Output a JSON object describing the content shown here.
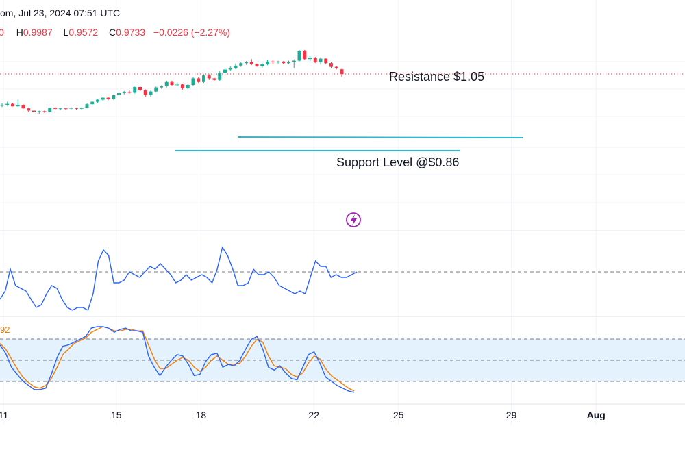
{
  "header": {
    "title_fragment": "om, Jul 23, 2024 07:51 UTC",
    "ohlc": {
      "o_fragment": "0",
      "h_label": "H",
      "h_value": "0.9987",
      "l_label": "L",
      "l_value": "0.9572",
      "c_label": "C",
      "c_value": "0.9733",
      "change": "−0.0226 (−2.27%)"
    }
  },
  "annotations": {
    "resistance": "Resistance $1.05",
    "support": "Support Level @$0.86"
  },
  "stoch_label_fragment": "92",
  "colors": {
    "up": "#22ab94",
    "down": "#f23645",
    "level_line": "#26bcd4",
    "rsi": "#2962ff",
    "stoch_k": "#2962ff",
    "stoch_d": "#f57c00",
    "band_fill": "#e3f2fd",
    "grid": "#f0f3fa",
    "header_text": "#f23645",
    "icon": "#9c27b0"
  },
  "icons": {
    "flash": "lightning-bolt-icon"
  },
  "chart_data": {
    "type": "candlestick",
    "x_ticks": [
      {
        "label": "11",
        "day": 11
      },
      {
        "label": "15",
        "day": 15
      },
      {
        "label": "18",
        "day": 18
      },
      {
        "label": "22",
        "day": 22
      },
      {
        "label": "25",
        "day": 25
      },
      {
        "label": "29",
        "day": 29
      },
      {
        "label": "Aug",
        "day": 32
      }
    ],
    "candles": [
      [
        0.82,
        0.83,
        0.812,
        0.822
      ],
      [
        0.822,
        0.838,
        0.818,
        0.828
      ],
      [
        0.828,
        0.832,
        0.815,
        0.816
      ],
      [
        0.816,
        0.848,
        0.812,
        0.823
      ],
      [
        0.823,
        0.826,
        0.804,
        0.806
      ],
      [
        0.806,
        0.808,
        0.79,
        0.795
      ],
      [
        0.795,
        0.798,
        0.788,
        0.79
      ],
      [
        0.79,
        0.795,
        0.78,
        0.792
      ],
      [
        0.792,
        0.796,
        0.784,
        0.79
      ],
      [
        0.79,
        0.81,
        0.786,
        0.808
      ],
      [
        0.808,
        0.812,
        0.8,
        0.804
      ],
      [
        0.804,
        0.81,
        0.798,
        0.806
      ],
      [
        0.806,
        0.808,
        0.8,
        0.805
      ],
      [
        0.805,
        0.812,
        0.8,
        0.808
      ],
      [
        0.808,
        0.81,
        0.8,
        0.804
      ],
      [
        0.804,
        0.812,
        0.8,
        0.81
      ],
      [
        0.81,
        0.83,
        0.806,
        0.826
      ],
      [
        0.826,
        0.84,
        0.82,
        0.838
      ],
      [
        0.838,
        0.852,
        0.832,
        0.848
      ],
      [
        0.848,
        0.862,
        0.842,
        0.858
      ],
      [
        0.858,
        0.86,
        0.846,
        0.852
      ],
      [
        0.852,
        0.872,
        0.848,
        0.87
      ],
      [
        0.87,
        0.884,
        0.864,
        0.88
      ],
      [
        0.88,
        0.89,
        0.874,
        0.886
      ],
      [
        0.886,
        0.892,
        0.878,
        0.882
      ],
      [
        0.882,
        0.912,
        0.878,
        0.91
      ],
      [
        0.91,
        0.912,
        0.89,
        0.894
      ],
      [
        0.894,
        0.898,
        0.862,
        0.872
      ],
      [
        0.872,
        0.892,
        0.862,
        0.888
      ],
      [
        0.888,
        0.912,
        0.884,
        0.908
      ],
      [
        0.908,
        0.918,
        0.902,
        0.914
      ],
      [
        0.914,
        0.94,
        0.908,
        0.934
      ],
      [
        0.934,
        0.94,
        0.914,
        0.92
      ],
      [
        0.92,
        0.932,
        0.914,
        0.922
      ],
      [
        0.922,
        0.926,
        0.898,
        0.904
      ],
      [
        0.904,
        0.924,
        0.9,
        0.92
      ],
      [
        0.92,
        0.958,
        0.914,
        0.952
      ],
      [
        0.952,
        0.96,
        0.93,
        0.934
      ],
      [
        0.934,
        0.972,
        0.93,
        0.966
      ],
      [
        0.966,
        0.972,
        0.944,
        0.952
      ],
      [
        0.952,
        0.954,
        0.94,
        0.944
      ],
      [
        0.944,
        0.986,
        0.94,
        0.98
      ],
      [
        0.98,
        1.002,
        0.974,
        0.995
      ],
      [
        0.995,
        1.01,
        0.988,
        1.0
      ],
      [
        1.0,
        1.024,
        0.996,
        1.014
      ],
      [
        1.014,
        1.03,
        1.008,
        1.026
      ],
      [
        1.026,
        1.036,
        1.018,
        1.032
      ],
      [
        1.032,
        1.046,
        1.016,
        1.02
      ],
      [
        1.02,
        1.024,
        1.008,
        1.012
      ],
      [
        1.012,
        1.028,
        1.004,
        1.02
      ],
      [
        1.02,
        1.04,
        1.016,
        1.034
      ],
      [
        1.034,
        1.04,
        1.022,
        1.03
      ],
      [
        1.03,
        1.038,
        1.024,
        1.034
      ],
      [
        1.034,
        1.036,
        1.02,
        1.026
      ],
      [
        1.026,
        1.038,
        1.02,
        1.032
      ],
      [
        1.032,
        1.044,
        1.002,
        1.038
      ],
      [
        1.038,
        1.09,
        1.034,
        1.086
      ],
      [
        1.086,
        1.09,
        1.04,
        1.046
      ],
      [
        1.046,
        1.06,
        1.036,
        1.05
      ],
      [
        1.05,
        1.056,
        1.026,
        1.03
      ],
      [
        1.03,
        1.054,
        1.024,
        1.048
      ],
      [
        1.048,
        1.05,
        1.02,
        1.026
      ],
      [
        1.026,
        1.03,
        1.0,
        1.008
      ],
      [
        1.008,
        1.012,
        0.996,
        1.0
      ],
      [
        0.9959,
        0.9987,
        0.9572,
        0.9733
      ]
    ],
    "resistance_level": 1.05,
    "support_level": 0.86,
    "current_price": 0.9733,
    "rsi": [
      30,
      36,
      52,
      40,
      38,
      36,
      30,
      24,
      26,
      34,
      40,
      38,
      30,
      24,
      22,
      24,
      24,
      22,
      34,
      58,
      66,
      62,
      42,
      42,
      44,
      50,
      48,
      46,
      50,
      54,
      52,
      56,
      52,
      48,
      42,
      44,
      48,
      44,
      46,
      48,
      46,
      42,
      52,
      68,
      62,
      52,
      40,
      40,
      42,
      52,
      48,
      48,
      50,
      46,
      40,
      38,
      36,
      34,
      36,
      34,
      46,
      58,
      54,
      54,
      46,
      48,
      46,
      46,
      48,
      50
    ],
    "rsi_midline": 50,
    "stoch_k": [
      72,
      60,
      40,
      30,
      20,
      14,
      8,
      8,
      10,
      30,
      54,
      70,
      72,
      76,
      80,
      84,
      96,
      98,
      98,
      96,
      90,
      94,
      96,
      92,
      92,
      90,
      56,
      40,
      28,
      40,
      50,
      58,
      56,
      44,
      28,
      30,
      48,
      58,
      60,
      40,
      44,
      42,
      50,
      66,
      80,
      84,
      66,
      40,
      36,
      42,
      32,
      24,
      22,
      40,
      58,
      62,
      46,
      26,
      20,
      14,
      10,
      6,
      4
    ],
    "stoch_d": [
      74,
      66,
      52,
      38,
      26,
      18,
      12,
      10,
      14,
      24,
      40,
      58,
      66,
      74,
      78,
      82,
      90,
      94,
      98,
      96,
      92,
      92,
      94,
      94,
      92,
      92,
      72,
      52,
      38,
      38,
      44,
      50,
      54,
      50,
      40,
      34,
      40,
      50,
      56,
      50,
      44,
      44,
      46,
      56,
      70,
      80,
      76,
      56,
      42,
      40,
      38,
      30,
      26,
      32,
      46,
      56,
      52,
      38,
      28,
      22,
      16,
      10,
      6
    ]
  }
}
